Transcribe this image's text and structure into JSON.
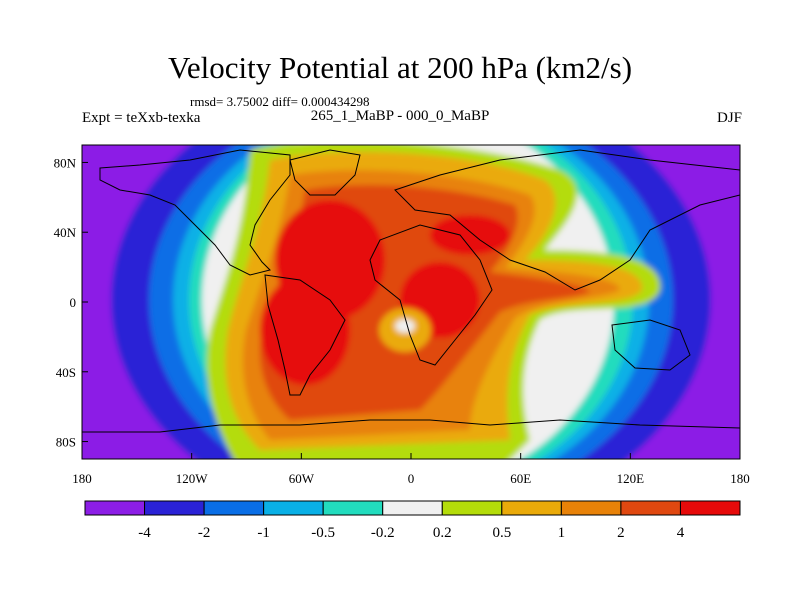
{
  "title": "Velocity Potential at 200 hPa (km2/s)",
  "stats": "rmsd= 3.75002 diff= 0.000434298",
  "experiment": "Expt = teXxb-texka",
  "subtitle": "265_1_MaBP - 000_0_MaBP",
  "season": "DJF",
  "chart_data": {
    "type": "contour-map",
    "title": "Velocity Potential at 200 hPa (km2/s)",
    "x_ticks": [
      "180",
      "120W",
      "60W",
      "0",
      "60E",
      "120E",
      "180"
    ],
    "x_tick_values": [
      -180,
      -120,
      -60,
      0,
      60,
      120,
      180
    ],
    "y_ticks": [
      "80N",
      "40N",
      "0",
      "40S",
      "80S"
    ],
    "y_tick_values": [
      80,
      40,
      0,
      -40,
      -80
    ],
    "xlim": [
      -180,
      180
    ],
    "ylim": [
      -90,
      90
    ],
    "contour_levels": [
      "-4",
      "-2",
      "-1",
      "-0.5",
      "-0.2",
      "0.2",
      "0.5",
      "1",
      "2",
      "4"
    ],
    "level_values": [
      -4,
      -2,
      -1,
      -0.5,
      -0.2,
      0.2,
      0.5,
      1,
      2,
      4
    ],
    "colors": [
      "#8c1ee6",
      "#2a22d6",
      "#0a6ee6",
      "#0ab0e6",
      "#22dcbe",
      "#f0f0f0",
      "#b4dc0a",
      "#eaaa0a",
      "#e88208",
      "#e04810",
      "#e60a0a"
    ],
    "features": [
      {
        "name": "positive-center-south-america",
        "lon": -60,
        "lat": -10,
        "value": 4
      },
      {
        "name": "positive-center-atlantic",
        "lon": -30,
        "lat": 40,
        "value": 4
      },
      {
        "name": "positive-center-africa",
        "lon": 30,
        "lat": 0,
        "value": 4
      },
      {
        "name": "negative-center-pacific-west",
        "lon": -160,
        "lat": 20,
        "value": -4
      },
      {
        "name": "negative-center-pacific-east",
        "lon": 165,
        "lat": 10,
        "value": -4
      }
    ]
  }
}
